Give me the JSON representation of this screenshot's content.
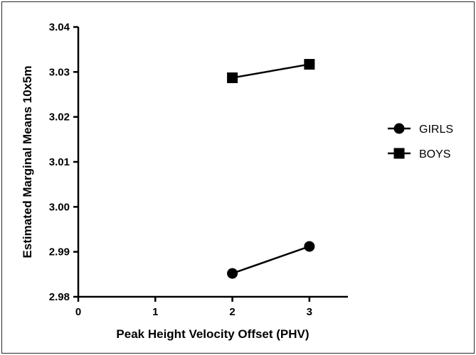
{
  "chart_data": {
    "type": "line",
    "title": "",
    "xlabel": "Peak Height Velocity Offset (PHV)",
    "ylabel": "Estimated Marginal Means 10x5m",
    "xlim": [
      0,
      3.5
    ],
    "ylim": [
      2.98,
      3.04
    ],
    "x_ticks": [
      0,
      1,
      2,
      3
    ],
    "x_tick_labels": [
      "0",
      "1",
      "2",
      "3"
    ],
    "y_ticks": [
      2.98,
      2.99,
      3.0,
      3.01,
      3.02,
      3.03,
      3.04
    ],
    "y_tick_labels": [
      "2.98",
      "2.99",
      "3.00",
      "3.01",
      "3.02",
      "3.03",
      "3.04"
    ],
    "grid": false,
    "legend_position": "right",
    "series": [
      {
        "name": "GIRLS",
        "marker": "circle",
        "color": "#000000",
        "points": [
          {
            "x": 2,
            "y": 2.9852
          },
          {
            "x": 3,
            "y": 2.9912
          }
        ]
      },
      {
        "name": "BOYS",
        "marker": "square",
        "color": "#000000",
        "points": [
          {
            "x": 2,
            "y": 3.0287
          },
          {
            "x": 3,
            "y": 3.0317
          }
        ]
      }
    ]
  }
}
